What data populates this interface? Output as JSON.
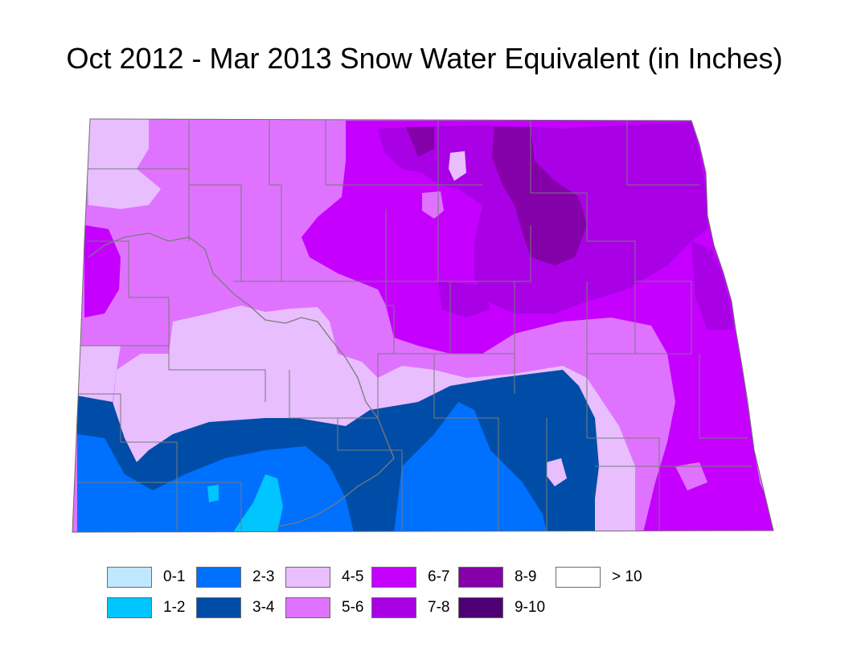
{
  "title": "Oct 2012 - Mar 2013 Snow Water Equivalent (in Inches)",
  "legend": [
    {
      "label": "0-1",
      "color": "#bee8ff"
    },
    {
      "label": "1-2",
      "color": "#00c5ff"
    },
    {
      "label": "2-3",
      "color": "#0070ff"
    },
    {
      "label": "3-4",
      "color": "#004da8"
    },
    {
      "label": "4-5",
      "color": "#e8beff"
    },
    {
      "label": "5-6",
      "color": "#df73ff"
    },
    {
      "label": "6-7",
      "color": "#c500ff"
    },
    {
      "label": "7-8",
      "color": "#a900e6"
    },
    {
      "label": "8-9",
      "color": "#8400a8"
    },
    {
      "label": "9-10",
      "color": "#4c0073"
    },
    {
      "label": "> 10",
      "color": "#ffffff"
    }
  ]
}
